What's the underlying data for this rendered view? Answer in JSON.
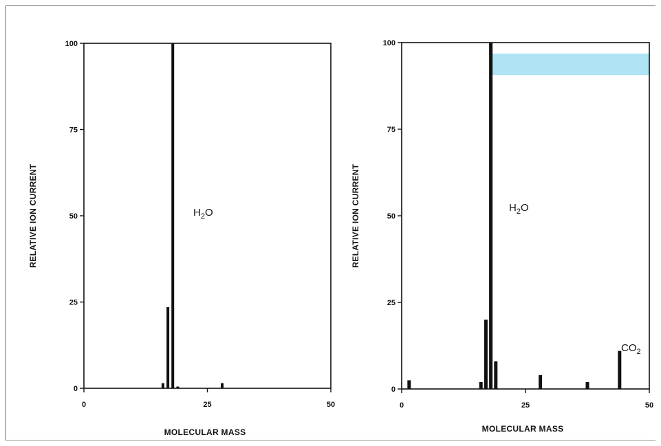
{
  "colors": {
    "bar": "#111111",
    "highlight": "#aee4f4",
    "axis": "#111111"
  },
  "chart_data": [
    {
      "type": "bar",
      "title": "",
      "xlabel": "MOLECULAR MASS",
      "ylabel": "RELATIVE ION CURRENT",
      "xlim": [
        0,
        50
      ],
      "ylim": [
        0,
        100
      ],
      "xticks": [
        0,
        25,
        50
      ],
      "yticks": [
        0,
        25,
        50,
        75,
        100
      ],
      "bars": [
        {
          "x": 16,
          "y": 1.5
        },
        {
          "x": 17,
          "y": 23.5
        },
        {
          "x": 18,
          "y": 100
        },
        {
          "x": 19,
          "y": 0.5
        },
        {
          "x": 28,
          "y": 1.5
        }
      ],
      "annotations": [
        {
          "base": "H",
          "sub": "2",
          "rest": "O"
        }
      ]
    },
    {
      "type": "bar",
      "title": "",
      "xlabel": "MOLECULAR MASS",
      "ylabel": "RELATIVE ION CURRENT",
      "xlim": [
        0,
        50
      ],
      "ylim": [
        0,
        100
      ],
      "xticks": [
        0,
        25,
        50
      ],
      "yticks": [
        0,
        25,
        50,
        75,
        100
      ],
      "bars": [
        {
          "x": 1.5,
          "y": 2.5
        },
        {
          "x": 16,
          "y": 2
        },
        {
          "x": 17,
          "y": 20
        },
        {
          "x": 18,
          "y": 100
        },
        {
          "x": 19,
          "y": 8
        },
        {
          "x": 28,
          "y": 4
        },
        {
          "x": 37.5,
          "y": 2
        },
        {
          "x": 44,
          "y": 11
        }
      ],
      "annotations": [
        {
          "base": "H",
          "sub": "2",
          "rest": "O"
        },
        {
          "base": "CO",
          "sub": "2",
          "rest": ""
        }
      ]
    }
  ]
}
